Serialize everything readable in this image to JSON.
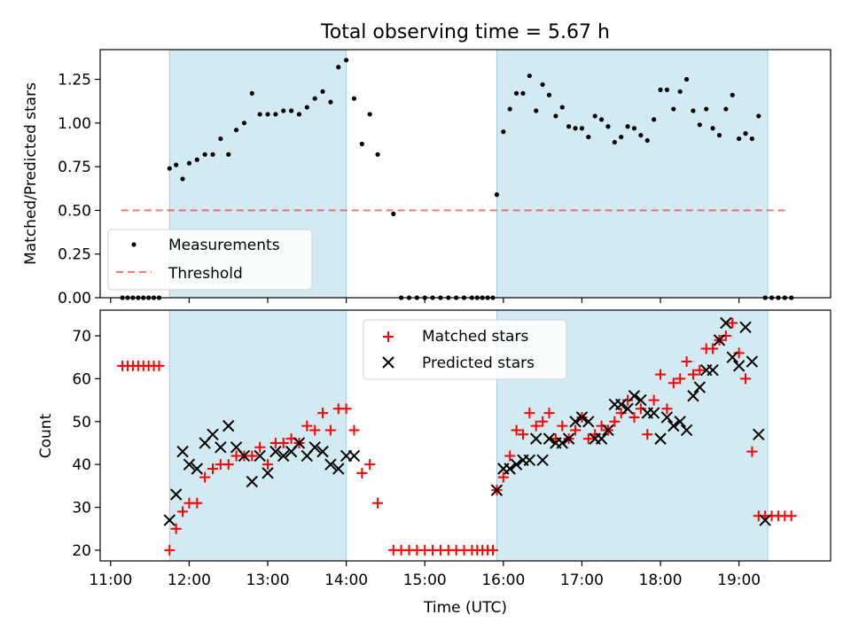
{
  "figure": {
    "title": "Total observing time = 5.67 h"
  },
  "colors": {
    "shade": "#add8e6",
    "threshold": "#ff0000",
    "matched": "#ff0000",
    "predicted": "#000000",
    "measurements": "#000000"
  },
  "chart_data": [
    {
      "type": "scatter",
      "title": "Total observing time = 5.67 h",
      "xlabel": "",
      "ylabel": "Matched/Predicted stars",
      "xlim": [
        "10:52",
        "20:10"
      ],
      "ylim": [
        0,
        1.42
      ],
      "yticks": [
        "0.00",
        "0.25",
        "0.50",
        "0.75",
        "1.00",
        "1.25"
      ],
      "ytick_values": [
        0,
        0.25,
        0.5,
        0.75,
        1.0,
        1.25
      ],
      "legend": {
        "placement": "lower-left",
        "entries": [
          "Measurements",
          "Threshold"
        ]
      },
      "shaded_intervals": [
        [
          "11:45",
          "14:00"
        ],
        [
          "15:55",
          "19:22"
        ]
      ],
      "threshold": {
        "name": "Threshold",
        "y": 0.5,
        "x_range": [
          "11:08",
          "19:37"
        ]
      },
      "series": [
        {
          "name": "Measurements",
          "marker": "dot",
          "x": [
            "11:09",
            "11:13",
            "11:17",
            "11:21",
            "11:25",
            "11:29",
            "11:33",
            "11:37",
            "11:45",
            "11:50",
            "11:55",
            "12:00",
            "12:06",
            "12:12",
            "12:18",
            "12:24",
            "12:30",
            "12:36",
            "12:42",
            "12:48",
            "12:54",
            "13:00",
            "13:06",
            "13:12",
            "13:18",
            "13:24",
            "13:30",
            "13:36",
            "13:42",
            "13:48",
            "13:54",
            "14:00",
            "14:06",
            "14:12",
            "14:18",
            "14:24",
            "14:36",
            "14:42",
            "14:48",
            "14:54",
            "15:00",
            "15:06",
            "15:12",
            "15:18",
            "15:24",
            "15:30",
            "15:36",
            "15:40",
            "15:44",
            "15:48",
            "15:52",
            "15:55",
            "16:00",
            "16:05",
            "16:10",
            "16:15",
            "16:20",
            "16:25",
            "16:30",
            "16:35",
            "16:40",
            "16:45",
            "16:50",
            "16:55",
            "17:00",
            "17:05",
            "17:10",
            "17:15",
            "17:20",
            "17:25",
            "17:30",
            "17:35",
            "17:40",
            "17:45",
            "17:50",
            "17:55",
            "18:00",
            "18:05",
            "18:10",
            "18:15",
            "18:20",
            "18:25",
            "18:30",
            "18:35",
            "18:40",
            "18:45",
            "18:50",
            "18:55",
            "19:00",
            "19:05",
            "19:10",
            "19:15",
            "19:20",
            "19:25",
            "19:30",
            "19:35",
            "19:40"
          ],
          "y": [
            0,
            0,
            0,
            0,
            0,
            0,
            0,
            0,
            0.74,
            0.76,
            0.68,
            0.77,
            0.79,
            0.82,
            0.82,
            0.91,
            0.82,
            0.96,
            1.0,
            1.17,
            1.05,
            1.05,
            1.05,
            1.07,
            1.07,
            1.05,
            1.09,
            1.14,
            1.18,
            1.12,
            1.32,
            1.36,
            1.14,
            0.88,
            1.05,
            0.82,
            0.48,
            0,
            0,
            0,
            0,
            0,
            0,
            0,
            0,
            0,
            0,
            0,
            0,
            0,
            0,
            0.59,
            0.95,
            1.08,
            1.17,
            1.17,
            1.27,
            1.07,
            1.22,
            1.16,
            1.04,
            1.09,
            0.98,
            0.97,
            0.97,
            0.92,
            1.04,
            1.02,
            0.98,
            0.89,
            0.92,
            0.98,
            0.97,
            0.93,
            0.9,
            1.02,
            1.19,
            1.19,
            1.08,
            1.18,
            1.25,
            1.07,
            0.99,
            1.08,
            0.97,
            0.93,
            1.08,
            1.16,
            0.91,
            0.94,
            0.91,
            1.04,
            0,
            0,
            0,
            0,
            0
          ]
        }
      ]
    },
    {
      "type": "scatter",
      "xlabel": "Time (UTC)",
      "ylabel": "Count",
      "xlim": [
        "10:52",
        "20:10"
      ],
      "ylim": [
        17.5,
        76
      ],
      "xticks": [
        "11:00",
        "12:00",
        "13:00",
        "14:00",
        "15:00",
        "16:00",
        "17:00",
        "18:00",
        "19:00"
      ],
      "yticks": [
        "20",
        "30",
        "40",
        "50",
        "60",
        "70"
      ],
      "ytick_values": [
        20,
        30,
        40,
        50,
        60,
        70
      ],
      "legend": {
        "placement": "upper-center",
        "entries": [
          "Matched stars",
          "Predicted stars"
        ]
      },
      "shaded_intervals": [
        [
          "11:45",
          "14:00"
        ],
        [
          "15:55",
          "19:22"
        ]
      ],
      "series": [
        {
          "name": "Matched stars",
          "marker": "plus",
          "x": [
            "11:09",
            "11:13",
            "11:17",
            "11:21",
            "11:25",
            "11:29",
            "11:33",
            "11:37",
            "11:45",
            "11:50",
            "11:55",
            "12:00",
            "12:06",
            "12:12",
            "12:18",
            "12:24",
            "12:30",
            "12:36",
            "12:42",
            "12:48",
            "12:54",
            "13:00",
            "13:06",
            "13:12",
            "13:18",
            "13:24",
            "13:30",
            "13:36",
            "13:42",
            "13:48",
            "13:54",
            "14:00",
            "14:06",
            "14:12",
            "14:18",
            "14:24",
            "14:36",
            "14:42",
            "14:48",
            "14:54",
            "15:00",
            "15:06",
            "15:12",
            "15:18",
            "15:24",
            "15:30",
            "15:36",
            "15:40",
            "15:44",
            "15:48",
            "15:52",
            "15:55",
            "16:00",
            "16:05",
            "16:10",
            "16:15",
            "16:20",
            "16:25",
            "16:30",
            "16:35",
            "16:40",
            "16:45",
            "16:50",
            "16:55",
            "17:00",
            "17:05",
            "17:10",
            "17:15",
            "17:20",
            "17:25",
            "17:30",
            "17:35",
            "17:40",
            "17:45",
            "17:50",
            "17:55",
            "18:00",
            "18:05",
            "18:10",
            "18:15",
            "18:20",
            "18:25",
            "18:30",
            "18:35",
            "18:40",
            "18:45",
            "18:50",
            "18:55",
            "19:00",
            "19:05",
            "19:10",
            "19:15",
            "19:20",
            "19:25",
            "19:30",
            "19:35",
            "19:40"
          ],
          "y": [
            63,
            63,
            63,
            63,
            63,
            63,
            63,
            63,
            20,
            25,
            29,
            31,
            31,
            37,
            39,
            40,
            40,
            42,
            42,
            42,
            44,
            40,
            45,
            45,
            46,
            45,
            49,
            48,
            52,
            48,
            53,
            53,
            48,
            38,
            40,
            31,
            20,
            20,
            20,
            20,
            20,
            20,
            20,
            20,
            20,
            20,
            20,
            20,
            20,
            20,
            20,
            34,
            37,
            42,
            48,
            47,
            52,
            49,
            50,
            52,
            46,
            49,
            46,
            48,
            51,
            46,
            47,
            49,
            48,
            50,
            52,
            55,
            51,
            53,
            47,
            55,
            61,
            53,
            59,
            60,
            64,
            61,
            62,
            67,
            67,
            69,
            70,
            73,
            66,
            60,
            43,
            28,
            28,
            28,
            28,
            28,
            28
          ]
        },
        {
          "name": "Predicted stars",
          "marker": "x",
          "x": [
            "11:45",
            "11:50",
            "11:55",
            "12:00",
            "12:06",
            "12:12",
            "12:18",
            "12:24",
            "12:30",
            "12:36",
            "12:42",
            "12:48",
            "12:54",
            "13:00",
            "13:06",
            "13:12",
            "13:18",
            "13:24",
            "13:30",
            "13:36",
            "13:42",
            "13:48",
            "13:54",
            "14:00",
            "14:06",
            "15:55",
            "16:00",
            "16:05",
            "16:10",
            "16:15",
            "16:20",
            "16:25",
            "16:30",
            "16:35",
            "16:40",
            "16:45",
            "16:50",
            "16:55",
            "17:00",
            "17:05",
            "17:10",
            "17:15",
            "17:20",
            "17:25",
            "17:30",
            "17:35",
            "17:40",
            "17:45",
            "17:50",
            "17:55",
            "18:00",
            "18:05",
            "18:10",
            "18:15",
            "18:20",
            "18:25",
            "18:30",
            "18:35",
            "18:40",
            "18:45",
            "18:50",
            "18:55",
            "19:00",
            "19:05",
            "19:10",
            "19:15",
            "19:20"
          ],
          "y": [
            27,
            33,
            43,
            40,
            39,
            45,
            47,
            44,
            49,
            44,
            42,
            36,
            42,
            38,
            43,
            42,
            43,
            45,
            42,
            44,
            43,
            40,
            39,
            42,
            42,
            34,
            39,
            39,
            40,
            41,
            41,
            46,
            41,
            46,
            45,
            45,
            46,
            50,
            51,
            50,
            46,
            46,
            48,
            54,
            54,
            53,
            56,
            55,
            52,
            52,
            46,
            51,
            49,
            50,
            48,
            56,
            58,
            62,
            62,
            69,
            73,
            65,
            63,
            72,
            64,
            47,
            27
          ]
        }
      ]
    }
  ]
}
